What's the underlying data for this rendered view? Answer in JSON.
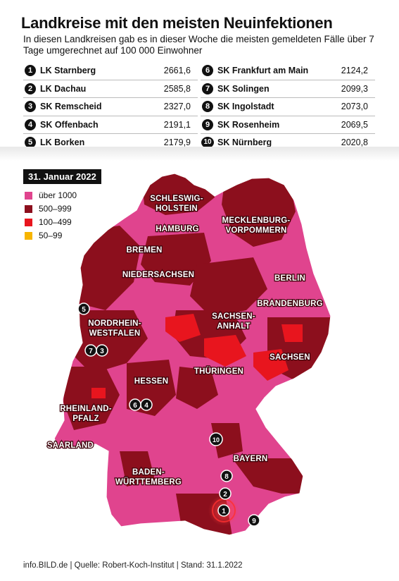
{
  "title": "Landkreise mit den meisten Neuinfektionen",
  "subtitle": "In diesen Landkreisen gab es in dieser Woche die meisten gemeldeten Fälle über 7 Tage umgerechnet auf 100 000 Einwohner",
  "ranking": [
    {
      "rank": "1",
      "name": "LK Starnberg",
      "value": "2661,6"
    },
    {
      "rank": "2",
      "name": "LK Dachau",
      "value": "2585,8"
    },
    {
      "rank": "3",
      "name": "SK Remscheid",
      "value": "2327,0"
    },
    {
      "rank": "4",
      "name": "SK Offenbach",
      "value": "2191,1"
    },
    {
      "rank": "5",
      "name": "LK Borken",
      "value": "2179,9"
    },
    {
      "rank": "6",
      "name": "SK Frankfurt am Main",
      "value": "2124,2"
    },
    {
      "rank": "7",
      "name": "SK Solingen",
      "value": "2099,3"
    },
    {
      "rank": "8",
      "name": "SK Ingolstadt",
      "value": "2073,0"
    },
    {
      "rank": "9",
      "name": "SK Rosenheim",
      "value": "2069,5"
    },
    {
      "rank": "10",
      "name": "SK Nürnberg",
      "value": "2020,8"
    }
  ],
  "legend": {
    "date": "31. Januar 2022",
    "items": [
      {
        "label": "über 1000",
        "color": "#e0448e"
      },
      {
        "label": "500–999",
        "color": "#8c0f1d"
      },
      {
        "label": "100–499",
        "color": "#e8151e"
      },
      {
        "label": "50–99",
        "color": "#f7b500"
      }
    ]
  },
  "states": {
    "sh": "SCHLESWIG-\nHOLSTEIN",
    "hh": "HAMBURG",
    "mv": "MECKLENBURG-\nVORPOMMERN",
    "hb": "BREMEN",
    "ni": "NIEDERSACHSEN",
    "be": "BERLIN",
    "bb": "BRANDENBURG",
    "nw": "NORDRHEIN-\nWESTFALEN",
    "st": "SACHSEN-\nANHALT",
    "sn": "SACHSEN",
    "th": "THÜRINGEN",
    "he": "HESSEN",
    "rp": "RHEINLAND-\nPFALZ",
    "sl": "SAARLAND",
    "by": "BAYERN",
    "bw": "BADEN-\nWÜRTTEMBERG"
  },
  "markers": [
    "1",
    "2",
    "3",
    "4",
    "5",
    "6",
    "7",
    "8",
    "9",
    "10"
  ],
  "footer": "info.BILD.de | Quelle: Robert-Koch-Institut | Stand: 31.1.2022"
}
